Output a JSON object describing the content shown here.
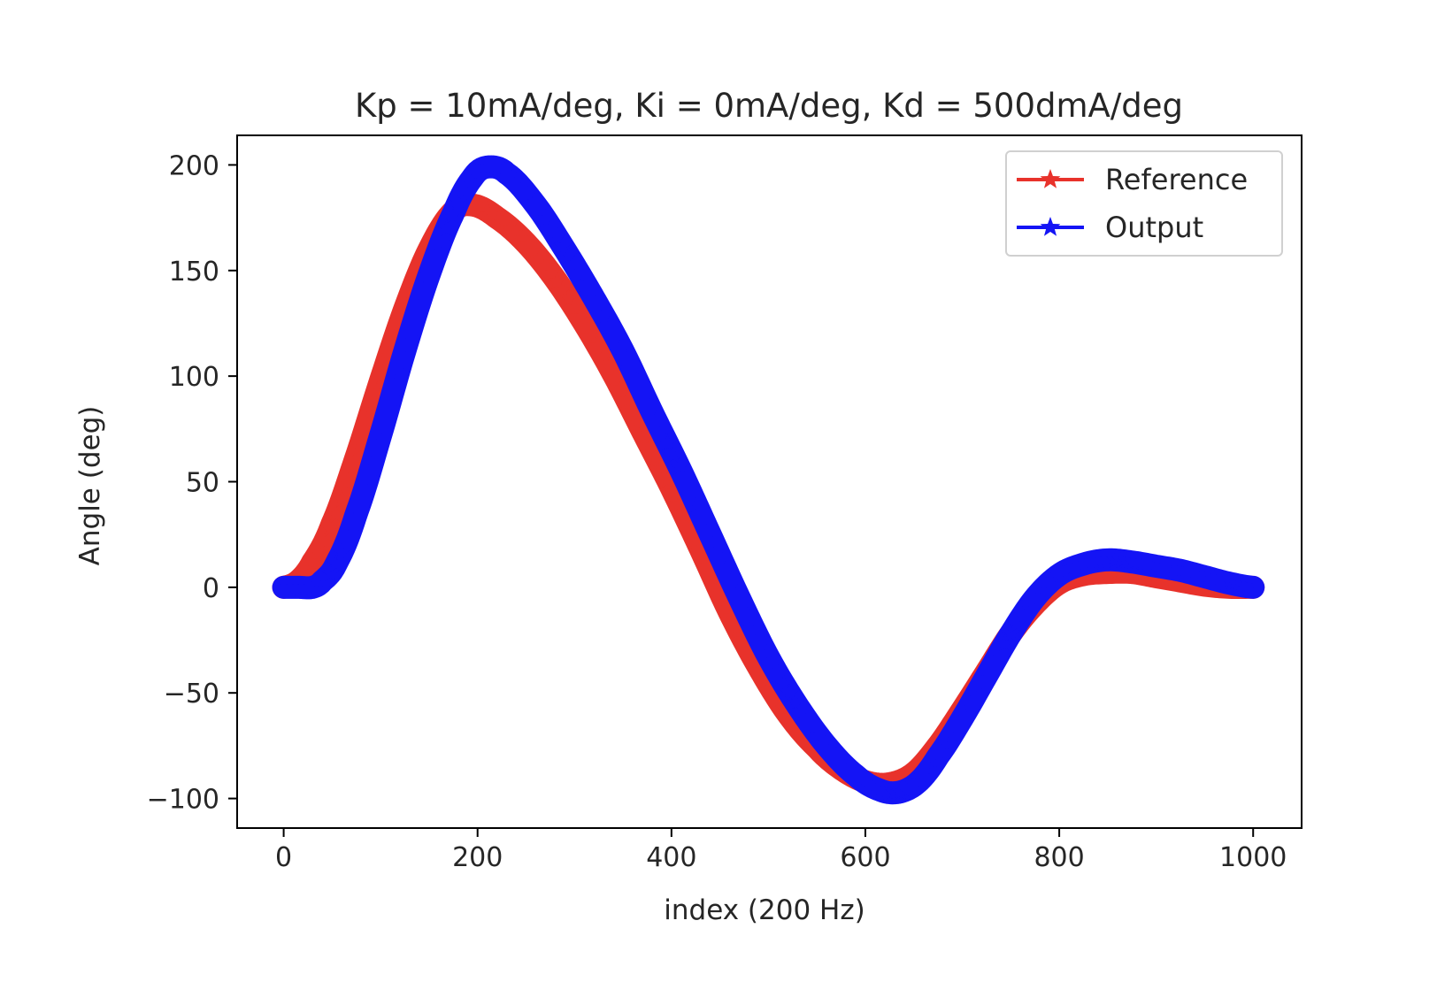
{
  "chart_data": {
    "type": "line",
    "title": "Kp = 10mA/deg, Ki = 0mA/deg, Kd = 500dmA/deg",
    "xlabel": "index (200 Hz)",
    "ylabel": "Angle (deg)",
    "xlim": [
      -48,
      1050
    ],
    "ylim": [
      -114,
      214
    ],
    "xticks": [
      0,
      200,
      400,
      600,
      800,
      1000
    ],
    "xtick_labels": [
      "0",
      "200",
      "400",
      "600",
      "800",
      "1000"
    ],
    "yticks": [
      200,
      150,
      100,
      50,
      0,
      -50,
      -100
    ],
    "ytick_labels": [
      "200",
      "150",
      "100",
      "50",
      "0",
      "−50",
      "−100"
    ],
    "grid": false,
    "legend": "top-right",
    "marker": "star",
    "series": [
      {
        "name": "Reference",
        "color": "#e8322b",
        "points": [
          [
            0,
            0
          ],
          [
            15,
            3
          ],
          [
            30,
            12
          ],
          [
            50,
            30
          ],
          [
            75,
            62
          ],
          [
            100,
            98
          ],
          [
            125,
            132
          ],
          [
            150,
            160
          ],
          [
            175,
            178
          ],
          [
            195,
            181
          ],
          [
            220,
            175
          ],
          [
            250,
            163
          ],
          [
            280,
            146
          ],
          [
            310,
            125
          ],
          [
            340,
            101
          ],
          [
            370,
            74
          ],
          [
            400,
            47
          ],
          [
            430,
            18
          ],
          [
            460,
            -12
          ],
          [
            490,
            -38
          ],
          [
            520,
            -60
          ],
          [
            550,
            -76
          ],
          [
            575,
            -86
          ],
          [
            600,
            -92
          ],
          [
            625,
            -93
          ],
          [
            650,
            -88
          ],
          [
            675,
            -75
          ],
          [
            700,
            -58
          ],
          [
            725,
            -40
          ],
          [
            750,
            -22
          ],
          [
            775,
            -8
          ],
          [
            800,
            2
          ],
          [
            825,
            6
          ],
          [
            850,
            7
          ],
          [
            875,
            7
          ],
          [
            900,
            5
          ],
          [
            925,
            3
          ],
          [
            950,
            1
          ],
          [
            975,
            0
          ],
          [
            1000,
            0
          ]
        ]
      },
      {
        "name": "Output",
        "color": "#1414f5",
        "points": [
          [
            0,
            0
          ],
          [
            15,
            0
          ],
          [
            30,
            0
          ],
          [
            40,
            3
          ],
          [
            55,
            12
          ],
          [
            75,
            35
          ],
          [
            100,
            72
          ],
          [
            125,
            112
          ],
          [
            150,
            148
          ],
          [
            175,
            177
          ],
          [
            195,
            194
          ],
          [
            210,
            199
          ],
          [
            230,
            196
          ],
          [
            260,
            181
          ],
          [
            290,
            160
          ],
          [
            320,
            137
          ],
          [
            350,
            112
          ],
          [
            380,
            83
          ],
          [
            410,
            55
          ],
          [
            440,
            25
          ],
          [
            470,
            -5
          ],
          [
            500,
            -33
          ],
          [
            530,
            -56
          ],
          [
            560,
            -75
          ],
          [
            590,
            -89
          ],
          [
            615,
            -96
          ],
          [
            635,
            -97
          ],
          [
            655,
            -92
          ],
          [
            675,
            -80
          ],
          [
            700,
            -62
          ],
          [
            725,
            -42
          ],
          [
            750,
            -22
          ],
          [
            775,
            -5
          ],
          [
            800,
            6
          ],
          [
            825,
            11
          ],
          [
            850,
            13
          ],
          [
            875,
            12
          ],
          [
            900,
            10
          ],
          [
            925,
            8
          ],
          [
            950,
            5
          ],
          [
            975,
            2
          ],
          [
            1000,
            0
          ]
        ]
      }
    ]
  }
}
